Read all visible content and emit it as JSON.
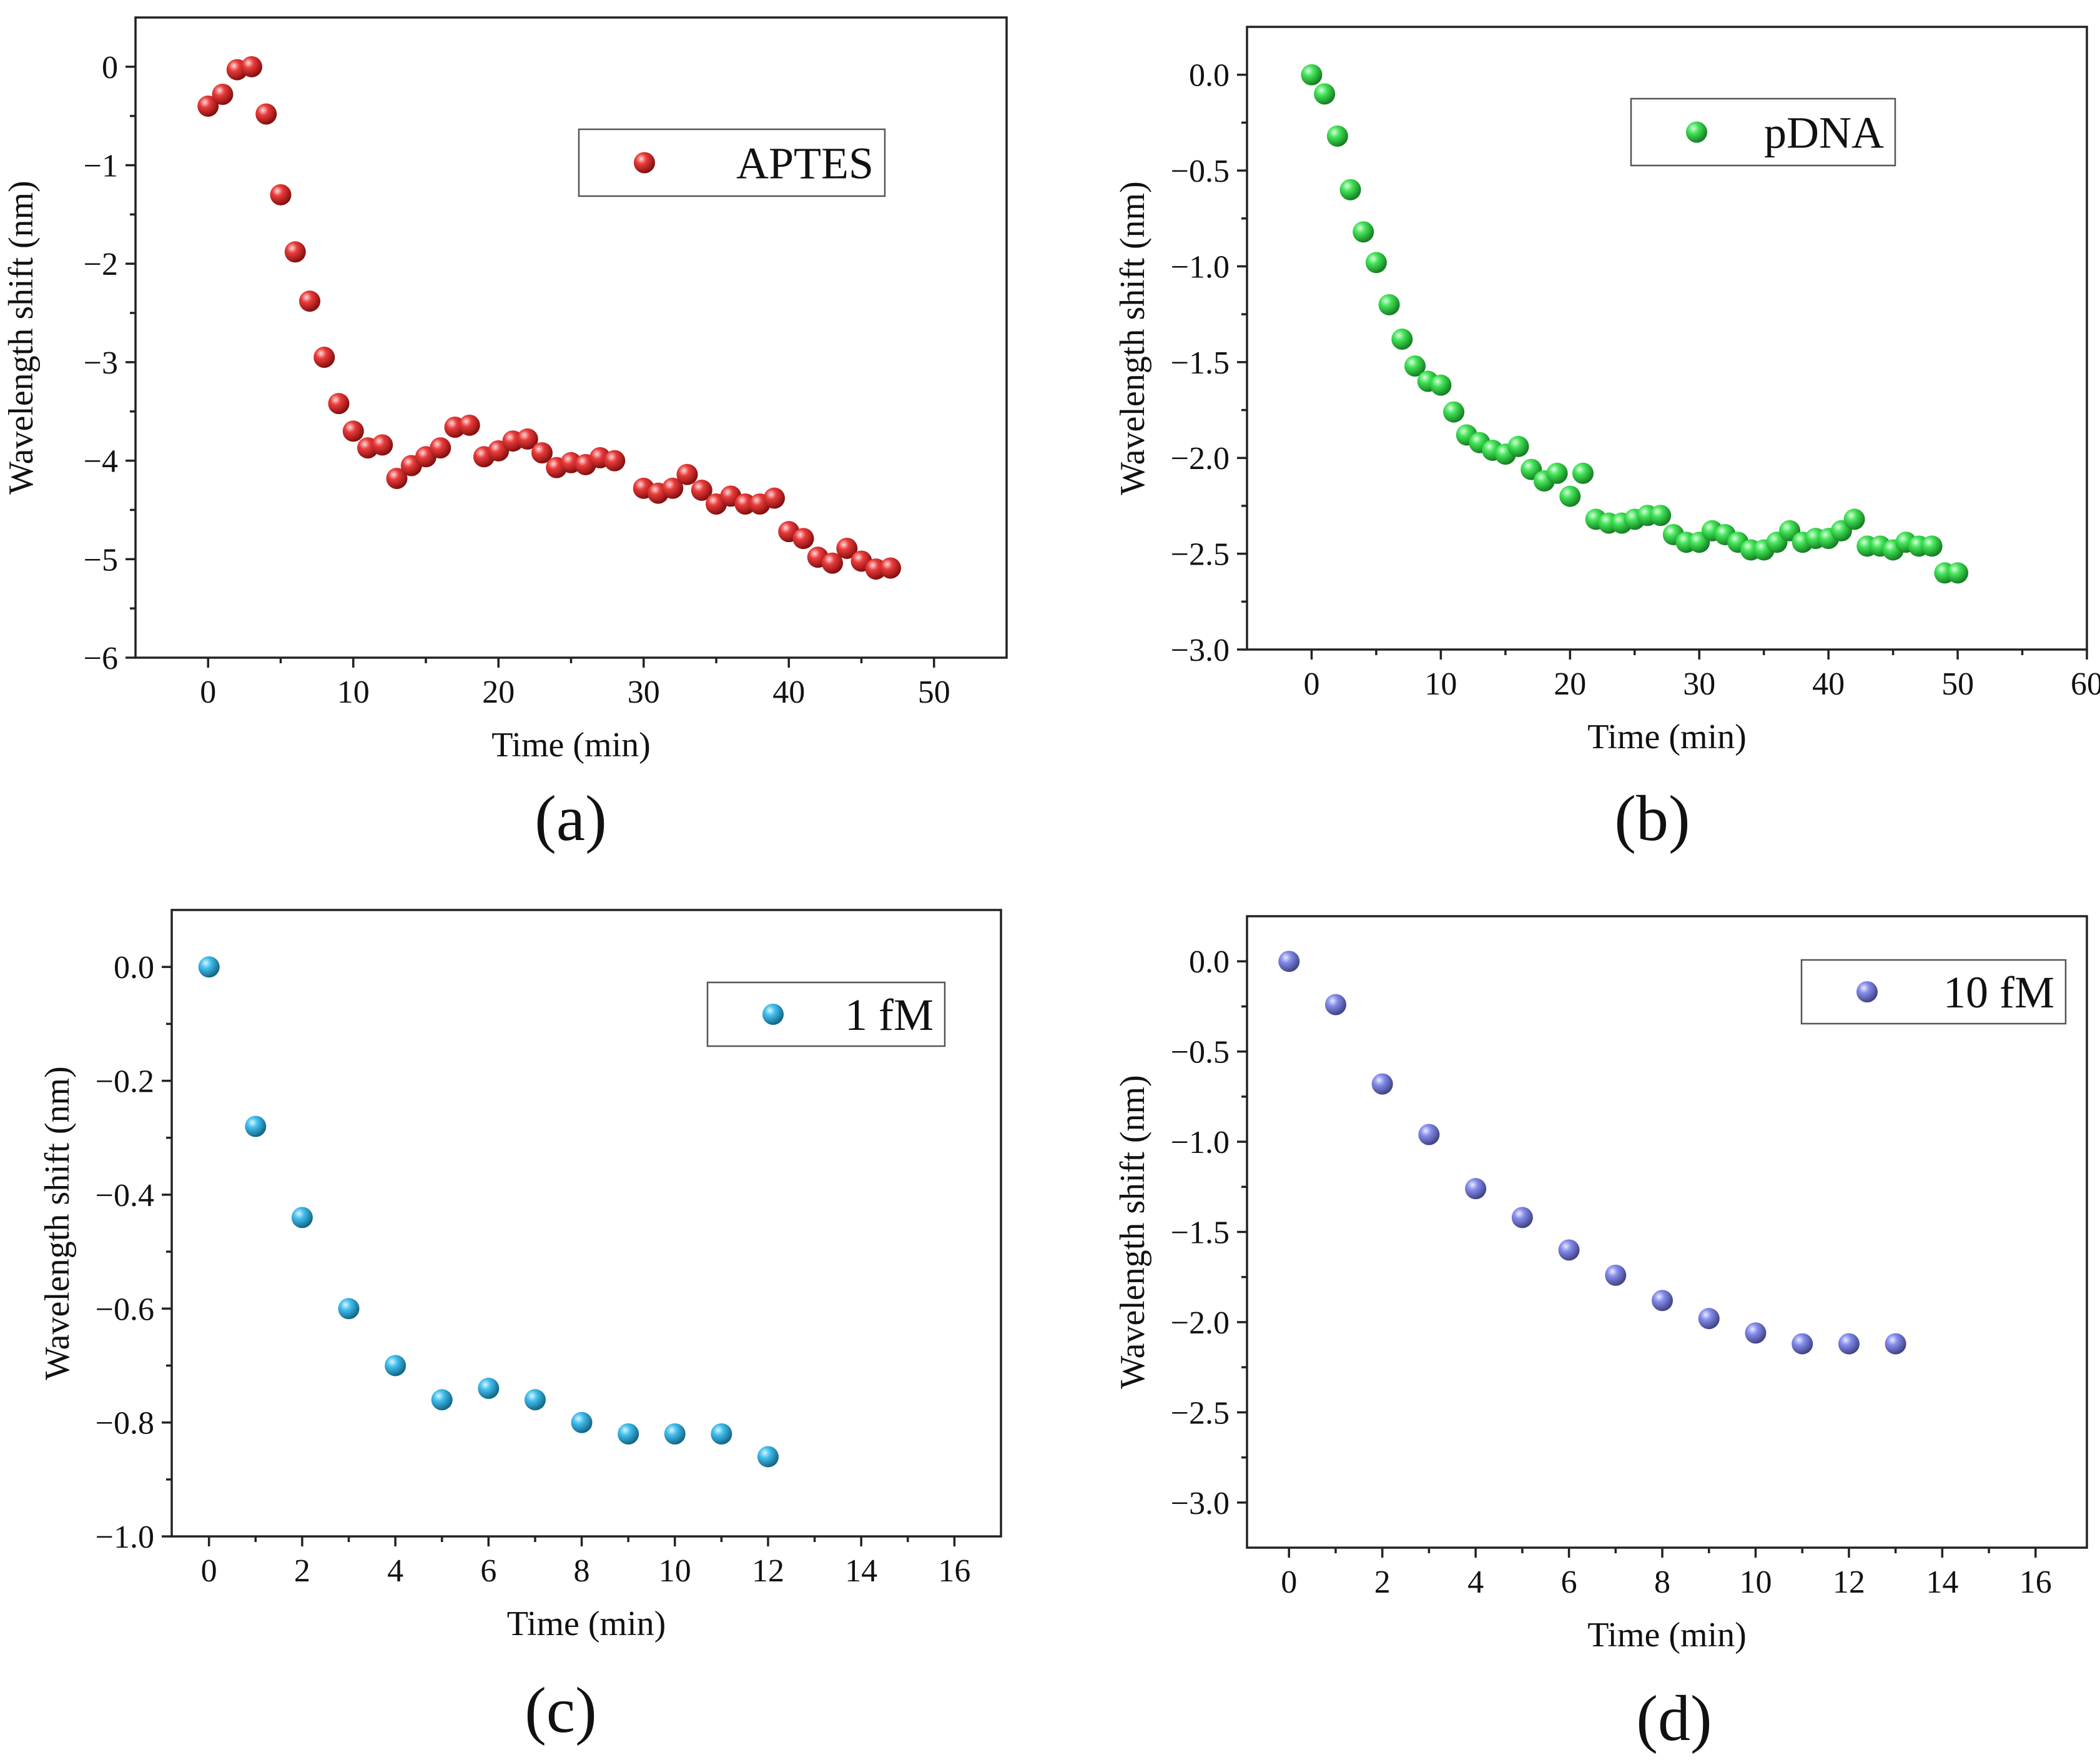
{
  "figure": {
    "panels": [
      {
        "id": "a",
        "label": "(a)"
      },
      {
        "id": "b",
        "label": "(b)"
      },
      {
        "id": "c",
        "label": "(c)"
      },
      {
        "id": "d",
        "label": "(d)"
      }
    ]
  },
  "chart_data": [
    {
      "type": "scatter",
      "panel_label": "(a)",
      "title": "",
      "xlabel": "Time (min)",
      "ylabel": "Wavelength shift (nm)",
      "xlim": [
        -5,
        55
      ],
      "ylim": [
        -6,
        0.5
      ],
      "xticks": [
        0,
        10,
        20,
        30,
        40,
        50
      ],
      "xtick_labels": [
        "0",
        "10",
        "20",
        "30",
        "40",
        "50"
      ],
      "yticks": [
        0,
        -1,
        -2,
        -3,
        -4,
        -5,
        -6
      ],
      "ytick_labels": [
        "0",
        "−1",
        "−2",
        "−3",
        "−4",
        "−5",
        "−6"
      ],
      "grid": false,
      "legend_position": "top-right",
      "series": [
        {
          "name": "APTES",
          "color": "#e81818",
          "x": [
            0,
            1,
            2,
            3,
            4,
            5,
            6,
            7,
            8,
            9,
            10,
            11,
            12,
            13,
            14,
            15,
            16,
            17,
            18,
            19,
            20,
            21,
            22,
            23,
            24,
            25,
            26,
            27,
            28,
            30,
            31,
            32,
            33,
            34,
            35,
            36,
            37,
            38,
            39,
            40,
            41,
            42,
            43,
            44,
            45,
            46,
            47
          ],
          "y": [
            -0.4,
            -0.28,
            -0.03,
            0,
            -0.48,
            -1.3,
            -1.88,
            -2.38,
            -2.95,
            -3.42,
            -3.7,
            -3.87,
            -3.84,
            -4.18,
            -4.05,
            -3.96,
            -3.87,
            -3.66,
            -3.64,
            -3.96,
            -3.9,
            -3.8,
            -3.78,
            -3.92,
            -4.07,
            -4.02,
            -4.04,
            -3.97,
            -4.0,
            -4.28,
            -4.33,
            -4.28,
            -4.14,
            -4.3,
            -4.44,
            -4.36,
            -4.44,
            -4.44,
            -4.38,
            -4.72,
            -4.79,
            -4.98,
            -5.04,
            -4.89,
            -5.02,
            -5.1,
            -5.09
          ]
        }
      ]
    },
    {
      "type": "scatter",
      "panel_label": "(b)",
      "title": "",
      "xlabel": "Time (min)",
      "ylabel": "Wavelength shift (nm)",
      "xlim": [
        -5,
        60
      ],
      "ylim": [
        -3.0,
        0.25
      ],
      "xticks": [
        0,
        10,
        20,
        30,
        40,
        50,
        60
      ],
      "xtick_labels": [
        "0",
        "10",
        "20",
        "30",
        "40",
        "50",
        "60"
      ],
      "yticks": [
        0,
        -0.5,
        -1.0,
        -1.5,
        -2.0,
        -2.5,
        -3.0
      ],
      "ytick_labels": [
        "0.0",
        "−0.5",
        "−1.0",
        "−1.5",
        "−2.0",
        "−2.5",
        "−3.0"
      ],
      "grid": false,
      "legend_position": "top-right",
      "series": [
        {
          "name": "pDNA",
          "color": "#22e03a",
          "x": [
            0,
            1,
            2,
            3,
            4,
            5,
            6,
            7,
            8,
            9,
            10,
            11,
            12,
            13,
            14,
            15,
            16,
            17,
            18,
            19,
            20,
            21,
            22,
            23,
            24,
            25,
            26,
            27,
            28,
            29,
            30,
            31,
            32,
            33,
            34,
            35,
            36,
            37,
            38,
            39,
            40,
            41,
            42,
            43,
            44,
            45,
            46,
            47,
            48,
            49,
            50
          ],
          "y": [
            0,
            -0.1,
            -0.32,
            -0.6,
            -0.82,
            -0.98,
            -1.2,
            -1.38,
            -1.52,
            -1.6,
            -1.62,
            -1.76,
            -1.88,
            -1.92,
            -1.96,
            -1.98,
            -1.94,
            -2.06,
            -2.12,
            -2.08,
            -2.2,
            -2.08,
            -2.32,
            -2.34,
            -2.34,
            -2.32,
            -2.3,
            -2.3,
            -2.4,
            -2.44,
            -2.44,
            -2.38,
            -2.4,
            -2.44,
            -2.48,
            -2.48,
            -2.44,
            -2.38,
            -2.44,
            -2.42,
            -2.42,
            -2.38,
            -2.32,
            -2.46,
            -2.46,
            -2.48,
            -2.44,
            -2.46,
            -2.46,
            -2.6,
            -2.6
          ]
        }
      ]
    },
    {
      "type": "scatter",
      "panel_label": "(c)",
      "title": "",
      "xlabel": "Time (min)",
      "ylabel": "Wavelength shift (nm)",
      "xlim": [
        -0.8,
        17
      ],
      "ylim": [
        -1.0,
        0.1
      ],
      "xticks": [
        0,
        2,
        4,
        6,
        8,
        10,
        12,
        14,
        16
      ],
      "xtick_labels": [
        "0",
        "2",
        "4",
        "6",
        "8",
        "10",
        "12",
        "14",
        "16"
      ],
      "yticks": [
        0,
        -0.2,
        -0.4,
        -0.6,
        -0.8,
        -1.0
      ],
      "ytick_labels": [
        "0.0",
        "−0.2",
        "−0.4",
        "−0.6",
        "−0.8",
        "−1.0"
      ],
      "grid": false,
      "legend_position": "top-right",
      "series": [
        {
          "name": "1 fM",
          "color": "#1fb4ec",
          "x": [
            0,
            1,
            2,
            3,
            4,
            5,
            6,
            7,
            8,
            9,
            10,
            11,
            12
          ],
          "y": [
            0,
            -0.28,
            -0.44,
            -0.6,
            -0.7,
            -0.76,
            -0.74,
            -0.76,
            -0.8,
            -0.82,
            -0.82,
            -0.82,
            -0.86
          ]
        }
      ]
    },
    {
      "type": "scatter",
      "panel_label": "(d)",
      "title": "",
      "xlabel": "Time (min)",
      "ylabel": "Wavelength shift (nm)",
      "xlim": [
        -0.9,
        17.1
      ],
      "ylim": [
        -3.25,
        0.25
      ],
      "xticks": [
        0,
        2,
        4,
        6,
        8,
        10,
        12,
        14,
        16
      ],
      "xtick_labels": [
        "0",
        "2",
        "4",
        "6",
        "8",
        "10",
        "12",
        "14",
        "16"
      ],
      "yticks": [
        0,
        -0.5,
        -1.0,
        -1.5,
        -2.0,
        -2.5,
        -3.0
      ],
      "ytick_labels": [
        "0.0",
        "−0.5",
        "−1.0",
        "−1.5",
        "−2.0",
        "−2.5",
        "−3.0"
      ],
      "grid": false,
      "legend_position": "top-right",
      "series": [
        {
          "name": "10 fM",
          "color": "#7078ea",
          "x": [
            0,
            1,
            2,
            3,
            4,
            5,
            6,
            7,
            8,
            9,
            10,
            11,
            12,
            13
          ],
          "y": [
            0,
            -0.24,
            -0.68,
            -0.96,
            -1.26,
            -1.42,
            -1.6,
            -1.74,
            -1.88,
            -1.98,
            -2.06,
            -2.12,
            -2.12,
            -2.12
          ]
        }
      ]
    }
  ]
}
